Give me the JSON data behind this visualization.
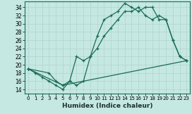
{
  "xlabel": "Humidex (Indice chaleur)",
  "xlim": [
    -0.5,
    23.5
  ],
  "ylim": [
    13,
    35.5
  ],
  "yticks": [
    14,
    16,
    18,
    20,
    22,
    24,
    26,
    28,
    30,
    32,
    34
  ],
  "xticks": [
    0,
    1,
    2,
    3,
    4,
    5,
    6,
    7,
    8,
    9,
    10,
    11,
    12,
    13,
    14,
    15,
    16,
    17,
    18,
    19,
    20,
    21,
    22,
    23
  ],
  "background_color": "#c5e8e2",
  "line_color": "#1a6b5a",
  "grid_color": "#b0d5cd",
  "series1_x": [
    0,
    1,
    2,
    3,
    4,
    5,
    6,
    7,
    8,
    9,
    10,
    11,
    12,
    13,
    14,
    15,
    16,
    17,
    18,
    19,
    20,
    21,
    22,
    23
  ],
  "series1_y": [
    19,
    18,
    17,
    16,
    15,
    14,
    16,
    15,
    16,
    22,
    27,
    31,
    32,
    33,
    35,
    34,
    33,
    34,
    34,
    31,
    31,
    26,
    22,
    21
  ],
  "series2_x": [
    0,
    3,
    4,
    5,
    6,
    7,
    8,
    9,
    10,
    11,
    12,
    13,
    14,
    15,
    16,
    17,
    18,
    19,
    20,
    21,
    22,
    23
  ],
  "series2_y": [
    19,
    18,
    16,
    15,
    16,
    22,
    21,
    22,
    24,
    27,
    29,
    31,
    33,
    33,
    34,
    32,
    31,
    32,
    31,
    26,
    22,
    21
  ],
  "series3_x": [
    0,
    5,
    23
  ],
  "series3_y": [
    19,
    15,
    21
  ]
}
